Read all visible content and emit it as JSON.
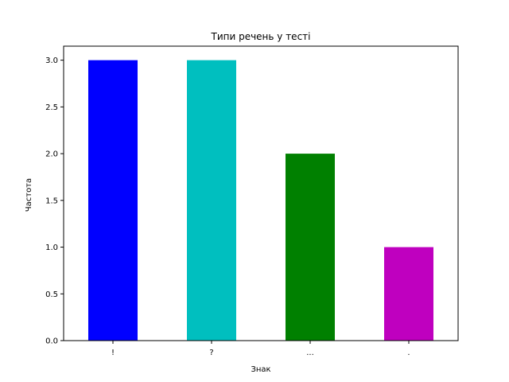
{
  "chart_data": {
    "type": "bar",
    "title": "Типи речень у тесті",
    "xlabel": "Знак",
    "ylabel": "Частота",
    "categories": [
      "!",
      "?",
      "...",
      "."
    ],
    "values": [
      3,
      3,
      2,
      1
    ],
    "colors": [
      "#0000ff",
      "#00bfbf",
      "#008000",
      "#bf00bf"
    ],
    "ylim": [
      0,
      3.15
    ],
    "yticks": [
      "0.0",
      "0.5",
      "1.0",
      "1.5",
      "2.0",
      "2.5",
      "3.0"
    ],
    "grid": false,
    "legend": "none"
  }
}
